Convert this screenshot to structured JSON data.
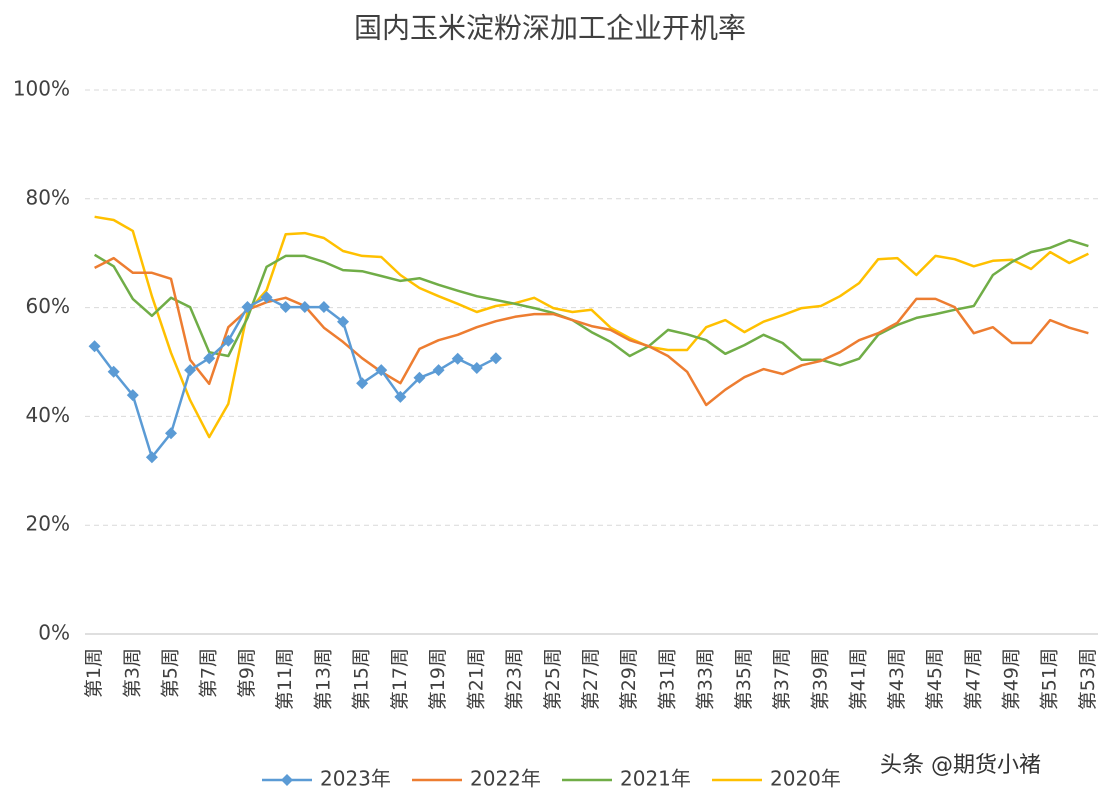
{
  "chart_data": {
    "type": "line",
    "title": "国内玉米淀粉深加工企业开机率",
    "categories": [
      "第1周",
      null,
      "第3周",
      null,
      "第5周",
      null,
      "第7周",
      null,
      "第9周",
      null,
      "第11周",
      null,
      "第13周",
      null,
      "第15周",
      null,
      "第17周",
      null,
      "第19周",
      null,
      "第21周",
      null,
      "第23周",
      null,
      "第25周",
      null,
      "第27周",
      null,
      "第29周",
      null,
      "第31周",
      null,
      "第33周",
      null,
      "第35周",
      null,
      "第37周",
      null,
      "第39周",
      null,
      "第41周",
      null,
      "第43周",
      null,
      "第45周",
      null,
      "第47周",
      null,
      "第49周",
      null,
      "第51周",
      null,
      "第53周"
    ],
    "ylim": [
      0,
      100
    ],
    "yticks": [
      {
        "value": 0,
        "label": "0%"
      },
      {
        "value": 20,
        "label": "20%"
      },
      {
        "value": 40,
        "label": "40%"
      },
      {
        "value": 60,
        "label": "60%"
      },
      {
        "value": 80,
        "label": "80%"
      },
      {
        "value": 100,
        "label": "100%"
      }
    ],
    "grid": true,
    "legend": "bottom",
    "watermark": "头条 @期货小褚",
    "series": [
      {
        "name": "2023年",
        "color": "#5b9bd5",
        "marker": "diamond",
        "values": [
          52.9,
          48.2,
          43.9,
          32.5,
          36.9,
          48.5,
          50.7,
          53.9,
          60.1,
          61.9,
          60.1,
          60.1,
          60.1,
          57.4,
          46.1,
          48.5,
          43.6,
          47.1,
          48.5,
          50.6,
          48.9,
          50.7,
          null,
          null,
          null,
          null,
          null,
          null,
          null,
          null,
          null,
          null,
          null,
          null,
          null,
          null,
          null,
          null,
          null,
          null,
          null,
          null,
          null,
          null,
          null,
          null,
          null,
          null,
          null,
          null,
          null,
          null,
          null
        ]
      },
      {
        "name": "2022年",
        "color": "#ed7d31",
        "values": [
          67.3,
          69.1,
          66.4,
          66.4,
          65.3,
          50.4,
          46.0,
          56.4,
          59.6,
          61.0,
          61.8,
          60.3,
          56.3,
          53.7,
          50.7,
          48.2,
          46.1,
          52.4,
          54.0,
          55.0,
          56.4,
          57.5,
          58.3,
          58.8,
          58.8,
          57.7,
          56.6,
          55.9,
          54.0,
          52.9,
          51.1,
          48.2,
          42.1,
          44.9,
          47.2,
          48.7,
          47.8,
          49.4,
          50.2,
          51.8,
          54.0,
          55.3,
          57.2,
          61.6,
          61.6,
          60.1,
          55.3,
          56.4,
          53.5,
          53.5,
          57.7,
          56.3,
          55.3
        ]
      },
      {
        "name": "2021年",
        "color": "#70ad47",
        "values": [
          69.7,
          67.6,
          61.6,
          58.5,
          61.8,
          60.1,
          51.8,
          51.1,
          58.1,
          67.5,
          69.5,
          69.5,
          68.4,
          66.9,
          66.7,
          65.8,
          64.9,
          65.4,
          64.2,
          63.1,
          62.1,
          61.4,
          60.7,
          59.9,
          59.0,
          57.7,
          55.5,
          53.7,
          51.1,
          52.9,
          55.9,
          55.1,
          54.0,
          51.5,
          53.1,
          55.0,
          53.5,
          50.4,
          50.4,
          49.4,
          50.6,
          55.0,
          56.8,
          58.1,
          58.8,
          59.6,
          60.3,
          66.0,
          68.4,
          70.2,
          71.0,
          72.4,
          71.3
        ]
      },
      {
        "name": "2020年",
        "color": "#ffc000",
        "values": [
          76.7,
          76.1,
          74.1,
          62.1,
          51.7,
          43.0,
          36.2,
          42.3,
          59.2,
          63.2,
          73.5,
          73.7,
          72.8,
          70.4,
          69.5,
          69.3,
          66.0,
          63.6,
          62.1,
          60.7,
          59.2,
          60.3,
          60.8,
          61.8,
          59.9,
          59.2,
          59.6,
          56.3,
          54.4,
          52.8,
          52.2,
          52.2,
          56.4,
          57.7,
          55.5,
          57.4,
          58.6,
          59.9,
          60.3,
          62.1,
          64.5,
          68.9,
          69.1,
          66.0,
          69.5,
          68.9,
          67.6,
          68.6,
          68.8,
          67.1,
          70.2,
          68.2,
          69.9
        ]
      }
    ]
  }
}
